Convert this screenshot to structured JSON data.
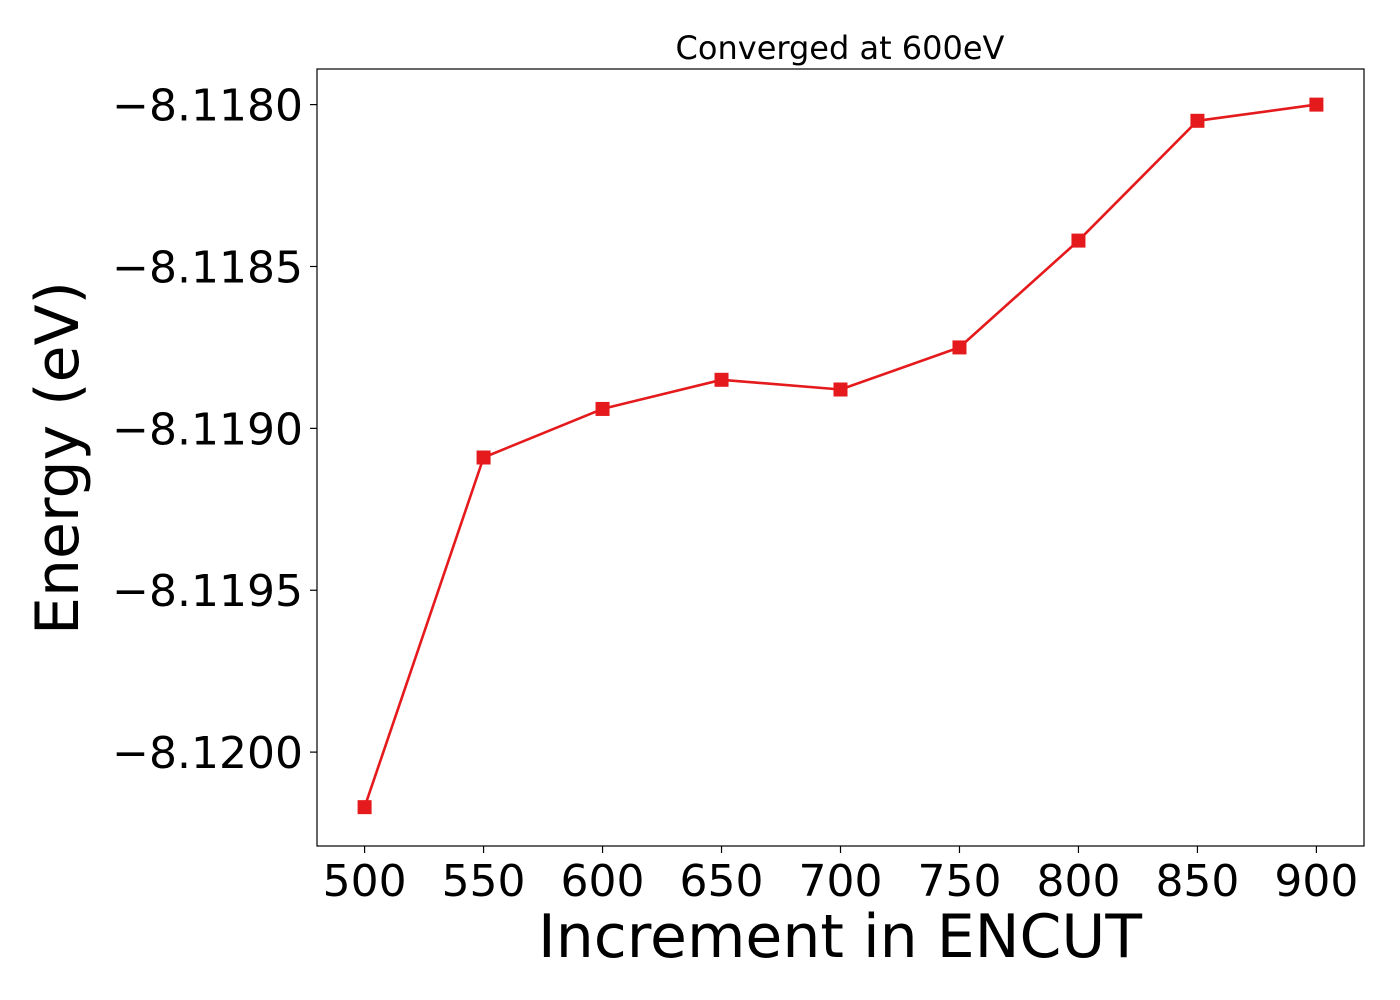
{
  "chart_data": {
    "type": "line",
    "title": "Converged at 600eV",
    "xlabel": "Increment in ENCUT",
    "ylabel": "Energy (eV)",
    "x": [
      500,
      550,
      600,
      650,
      700,
      750,
      800,
      850,
      900
    ],
    "series": [
      {
        "values": [
          -8.12017,
          -8.11909,
          -8.11894,
          -8.11885,
          -8.11888,
          -8.11875,
          -8.11842,
          -8.11805,
          -8.118
        ],
        "color": "#e41a1c",
        "marker": "square"
      }
    ],
    "xticks": [
      500,
      550,
      600,
      650,
      700,
      750,
      800,
      850,
      900
    ],
    "xtick_labels": [
      "500",
      "550",
      "600",
      "650",
      "700",
      "750",
      "800",
      "850",
      "900"
    ],
    "yticks": [
      -8.118,
      -8.1185,
      -8.119,
      -8.1195,
      -8.12
    ],
    "ytick_labels": [
      "−8.1180",
      "−8.1185",
      "−8.1190",
      "−8.1195",
      "−8.1200"
    ],
    "xlim": [
      480,
      920
    ],
    "ylim": [
      -8.12029,
      -8.11789
    ],
    "grid": false,
    "legend": false
  }
}
